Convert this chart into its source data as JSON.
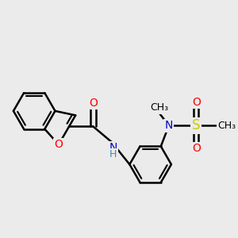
{
  "bg_color": "#ebebeb",
  "bond_color": "#000000",
  "bond_width": 1.8,
  "atom_colors": {
    "O": "#ff0000",
    "N": "#0000cc",
    "S": "#cccc00",
    "C": "#000000",
    "H": "#4488aa"
  },
  "font_size": 10,
  "fig_size": [
    3.0,
    3.0
  ],
  "dpi": 100,
  "xlim": [
    -2.8,
    4.2
  ],
  "ylim": [
    -2.2,
    2.2
  ]
}
